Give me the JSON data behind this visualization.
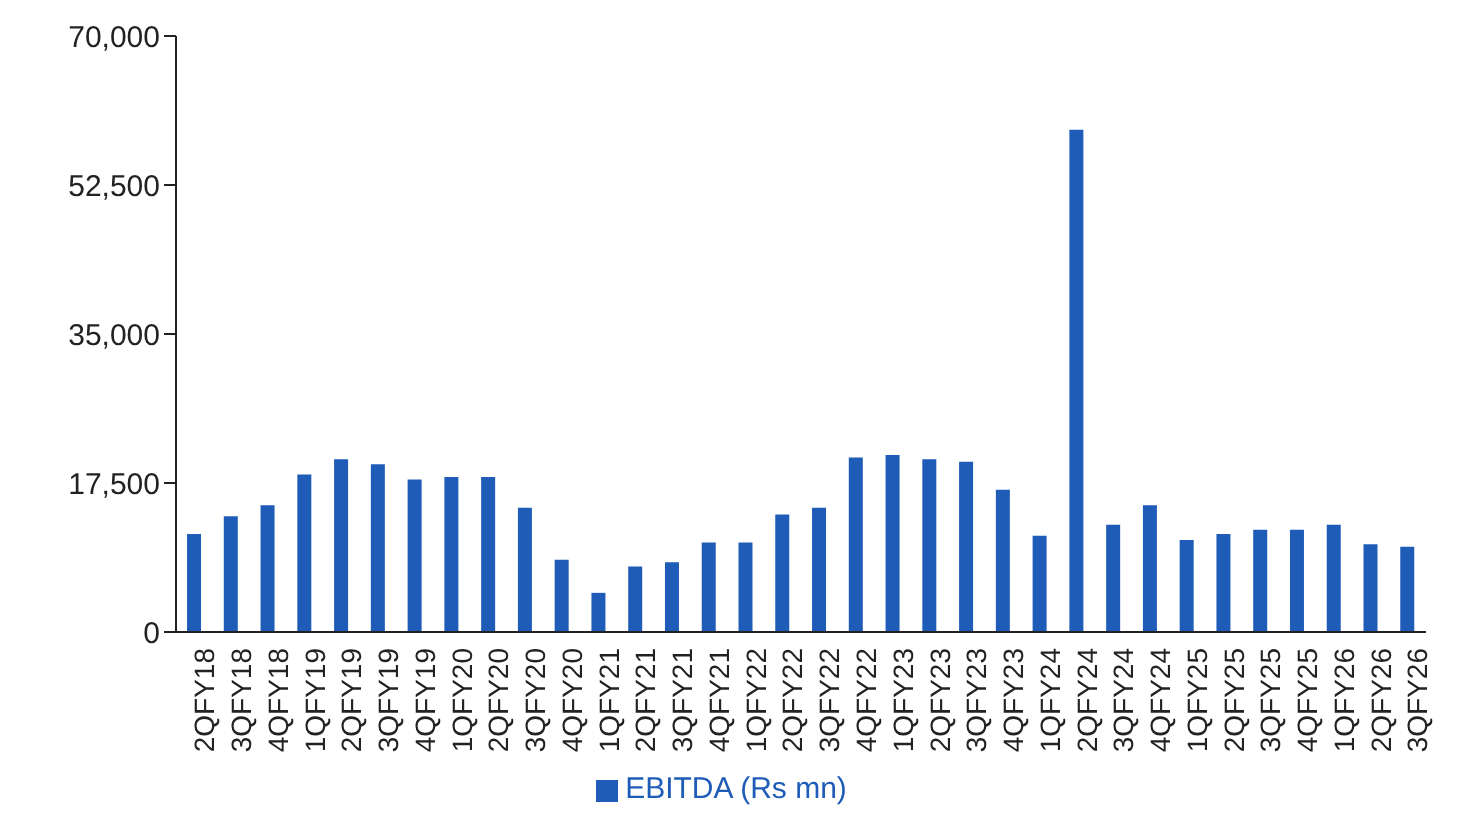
{
  "chart_data": {
    "type": "bar",
    "categories": [
      "2QFY18",
      "3QFY18",
      "4QFY18",
      "1QFY19",
      "2QFY19",
      "3QFY19",
      "4QFY19",
      "1QFY20",
      "2QFY20",
      "3QFY20",
      "4QFY20",
      "1QFY21",
      "2QFY21",
      "3QFY21",
      "4QFY21",
      "1QFY22",
      "2QFY22",
      "3QFY22",
      "4QFY22",
      "1QFY23",
      "2QFY23",
      "3QFY23",
      "4QFY23",
      "1QFY24",
      "2QFY24",
      "3QFY24",
      "4QFY24",
      "1QFY25",
      "2QFY25",
      "3QFY25",
      "4QFY25",
      "1QFY26",
      "2QFY26",
      "3QFY26"
    ],
    "series": [
      {
        "name": "EBITDA (Rs mn)",
        "color": "#1f5cb8",
        "values": [
          11500,
          13600,
          14900,
          18500,
          20300,
          19700,
          17900,
          18200,
          18200,
          14600,
          8500,
          4600,
          7700,
          8200,
          10500,
          10500,
          13800,
          14600,
          20500,
          20800,
          20300,
          20000,
          16700,
          11300,
          59000,
          12600,
          14900,
          10800,
          11500,
          12000,
          12000,
          12600,
          10300,
          10000
        ]
      }
    ],
    "ylim": [
      0,
      70000
    ],
    "yticks": [
      {
        "value": 0,
        "label": "0"
      },
      {
        "value": 17500,
        "label": "17,500"
      },
      {
        "value": 35000,
        "label": "35,000"
      },
      {
        "value": 52500,
        "label": "52,500"
      },
      {
        "value": 70000,
        "label": "70,000"
      }
    ],
    "grid": false,
    "legend": "bottom"
  }
}
